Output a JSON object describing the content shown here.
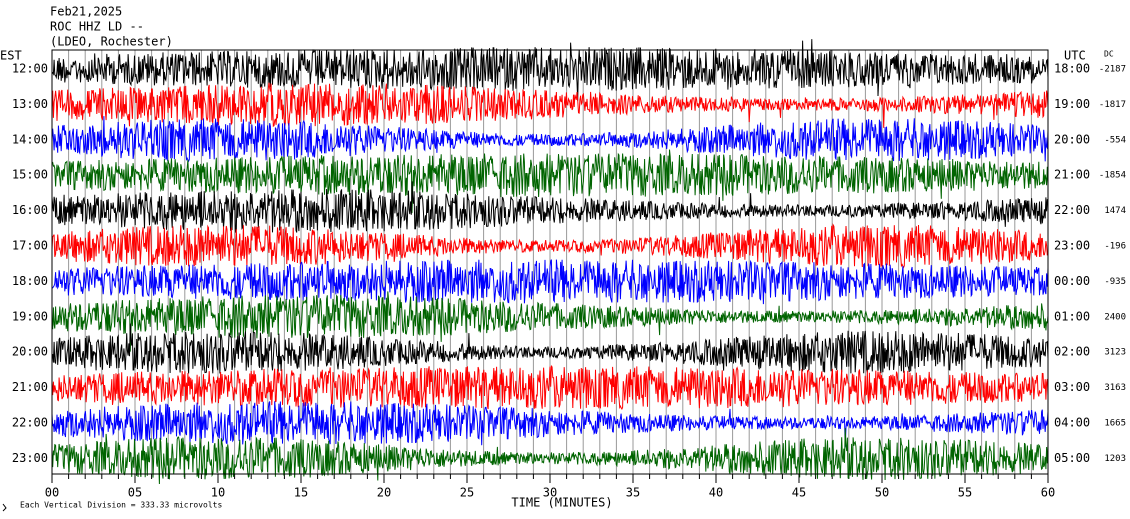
{
  "chart_data": {
    "type": "helicorder",
    "title_lines": [
      "Feb21,2025",
      "ROC HHZ LD --",
      "(LDEO, Rochester)"
    ],
    "left_axis_label": "EST",
    "right_axis_label": "UTC",
    "dc_label": "DC",
    "xlabel": "TIME (MINUTES)",
    "footnote": "Each Vertical Division =  333.33 microvolts",
    "xlim": [
      0,
      60
    ],
    "xticks": [
      {
        "value": 0,
        "label": "00"
      },
      {
        "value": 5,
        "label": "05"
      },
      10,
      15,
      20,
      25,
      30,
      35,
      40,
      45,
      50,
      55,
      60
    ],
    "rows": [
      {
        "est": "12:00",
        "utc": "18:00",
        "dc": -2187,
        "color": "#000000"
      },
      {
        "est": "13:00",
        "utc": "19:00",
        "dc": -1817,
        "color": "#ff0000"
      },
      {
        "est": "14:00",
        "utc": "20:00",
        "dc": -554,
        "color": "#0000ff"
      },
      {
        "est": "15:00",
        "utc": "21:00",
        "dc": -1854,
        "color": "#006400"
      },
      {
        "est": "16:00",
        "utc": "22:00",
        "dc": 1474,
        "color": "#000000"
      },
      {
        "est": "17:00",
        "utc": "23:00",
        "dc": -196,
        "color": "#ff0000"
      },
      {
        "est": "18:00",
        "utc": "00:00",
        "dc": -935,
        "color": "#0000ff"
      },
      {
        "est": "19:00",
        "utc": "01:00",
        "dc": 2400,
        "color": "#006400"
      },
      {
        "est": "20:00",
        "utc": "02:00",
        "dc": 3123,
        "color": "#000000"
      },
      {
        "est": "21:00",
        "utc": "03:00",
        "dc": 3163,
        "color": "#ff0000"
      },
      {
        "est": "22:00",
        "utc": "04:00",
        "dc": 1665,
        "color": "#0000ff"
      },
      {
        "est": "23:00",
        "utc": "05:00",
        "dc": 1203,
        "color": "#006400"
      }
    ]
  }
}
